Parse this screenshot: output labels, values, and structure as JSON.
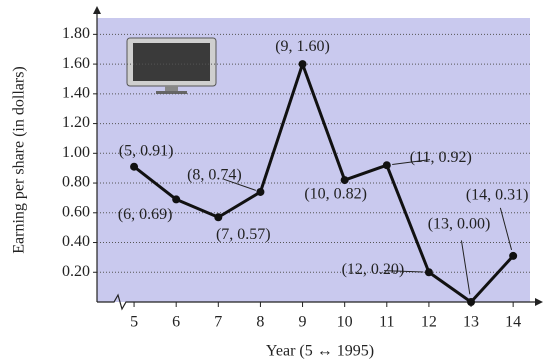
{
  "chart_data": {
    "type": "line",
    "x_label": "Year (5 ↔ 1995)",
    "y_label": "Earning per share (in dollars)",
    "x": [
      5,
      6,
      7,
      8,
      9,
      10,
      11,
      12,
      13,
      14
    ],
    "series": [
      {
        "color": "#111111",
        "values": [
          0.91,
          0.69,
          0.57,
          0.74,
          1.6,
          0.82,
          0.92,
          0.2,
          0.0,
          0.31
        ],
        "value_labels": [
          "(5, 0.91)",
          "(6, 0.69)",
          "(7, 0.57)",
          "(8, 0.74)",
          "(9, 1.60)",
          "(10, 0.82)",
          "(11, 0.92)",
          "(12, 0.20)",
          "(13, 0.00)",
          "(14, 0.31)"
        ]
      }
    ],
    "xlim": [
      4.12,
      14.4
    ],
    "ylim": [
      0,
      1.91
    ],
    "xticks": [
      5,
      6,
      7,
      8,
      9,
      10,
      11,
      12,
      13,
      14
    ],
    "yticks": [
      {
        "value": 0.2,
        "label": "0.20"
      },
      {
        "value": 0.4,
        "label": "0.40"
      },
      {
        "value": 0.6,
        "label": "0.60"
      },
      {
        "value": 0.8,
        "label": "0.80"
      },
      {
        "value": 1.0,
        "label": "1.00"
      },
      {
        "value": 1.2,
        "label": "1.20"
      },
      {
        "value": 1.4,
        "label": "1.40"
      },
      {
        "value": 1.6,
        "label": "1.60"
      },
      {
        "value": 1.8,
        "label": "1.80"
      }
    ],
    "grid": true,
    "background": "#c9c9ee"
  }
}
